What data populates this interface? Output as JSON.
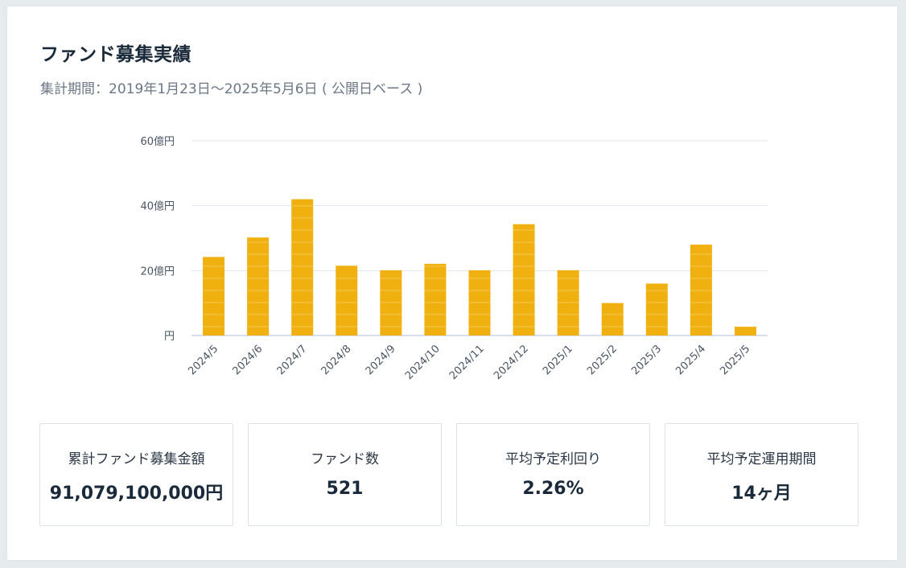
{
  "page": {
    "title": "ファンド募集実績",
    "subtitle": "集計期間：2019年1月23日〜2025年5月6日 ( 公開日ベース )"
  },
  "chart_data": {
    "type": "bar",
    "categories": [
      "2024/5",
      "2024/6",
      "2024/7",
      "2024/8",
      "2024/9",
      "2024/10",
      "2024/11",
      "2024/12",
      "2025/1",
      "2025/2",
      "2025/3",
      "2025/4",
      "2025/5"
    ],
    "values": [
      24.2,
      30.2,
      42,
      21.5,
      20.1,
      22.1,
      20.1,
      34.3,
      20.1,
      10,
      16,
      28,
      2.7
    ],
    "unit": "億円",
    "ylim": [
      0,
      60
    ],
    "yticks": [
      0,
      20,
      40,
      60
    ],
    "ytick_labels": [
      "円",
      "20億円",
      "40億円",
      "60億円"
    ],
    "grid": true,
    "bar_color": "#f0b110",
    "grid_color": "#e3e6ea",
    "axis_color": "#c9d3e6"
  },
  "stats": [
    {
      "label": "累計ファンド募集金額",
      "value": "91,079,100,000円"
    },
    {
      "label": "ファンド数",
      "value": "521"
    },
    {
      "label": "平均予定利回り",
      "value": "2.26%"
    },
    {
      "label": "平均予定運用期間",
      "value": "14ヶ月"
    }
  ]
}
